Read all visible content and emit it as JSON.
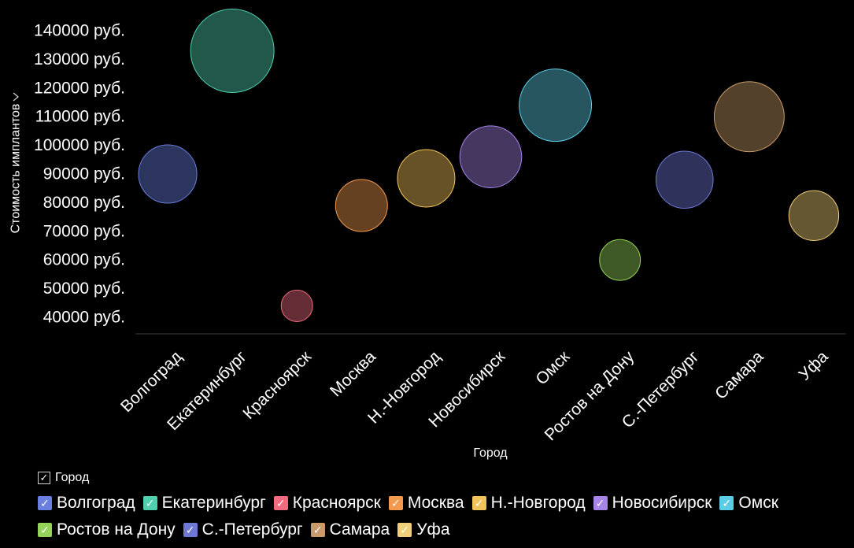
{
  "chart_data": {
    "type": "scatter",
    "subtype": "bubble",
    "xlabel": "Город",
    "ylabel": "Стоимость имплантов",
    "ylabel_icon": "chevron-right-icon",
    "y_ticks": [
      "40000 руб.",
      "50000 руб.",
      "60000 руб.",
      "70000 руб.",
      "80000 руб.",
      "90000 руб.",
      "100000 руб.",
      "110000 руб.",
      "120000 руб.",
      "130000 руб.",
      "140000 руб."
    ],
    "y_tick_values": [
      40000,
      50000,
      60000,
      70000,
      80000,
      90000,
      100000,
      110000,
      120000,
      130000,
      140000
    ],
    "categories": [
      "Волгоград",
      "Екатеринбург",
      "Красноярск",
      "Москва",
      "Н.-Новгород",
      "Новосибирск",
      "Омск",
      "Ростов на Дону",
      "С.-Петербург",
      "Самара",
      "Уфа"
    ],
    "values": [
      90000,
      133000,
      44000,
      79000,
      88500,
      96000,
      114000,
      60000,
      88000,
      110000,
      75500
    ],
    "sizes": [
      90000,
      133000,
      44000,
      79000,
      88500,
      96000,
      114000,
      60000,
      88000,
      110000,
      75500
    ],
    "colors": [
      "#6a7fe0",
      "#4fd1b0",
      "#f06b7f",
      "#f39a4e",
      "#f2c35a",
      "#a684e8",
      "#5ccde6",
      "#93d35a",
      "#7078d6",
      "#c99a6a",
      "#f2cf7a"
    ],
    "ylim": [
      35000,
      145000
    ],
    "grid": false,
    "legend": {
      "position": "bottom",
      "title": "Город",
      "title_check": "✓",
      "check": "✓"
    }
  }
}
